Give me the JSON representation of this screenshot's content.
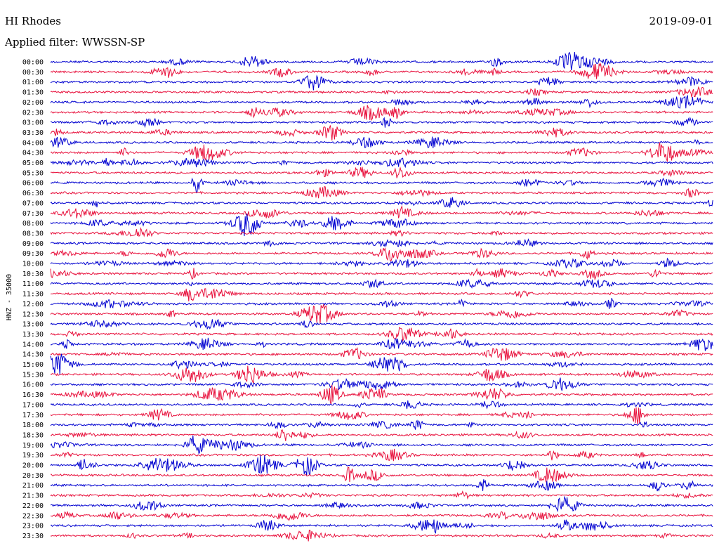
{
  "header": {
    "station": "HI Rhodes",
    "date": "2019-09-01",
    "filter_text": "Applied filter: WWSSN-SP"
  },
  "chart_data": {
    "type": "line",
    "title": "HI Rhodes",
    "date": "2019-09-01",
    "filter": "WWSSN-SP",
    "ylabel": "HNZ - 35000",
    "row_interval_minutes": 30,
    "row_labels": [
      "00:00",
      "00:30",
      "01:00",
      "01:30",
      "02:00",
      "02:30",
      "03:00",
      "03:30",
      "04:00",
      "04:30",
      "05:00",
      "05:30",
      "06:00",
      "06:30",
      "07:00",
      "07:30",
      "08:00",
      "08:30",
      "09:00",
      "09:30",
      "10:00",
      "10:30",
      "11:00",
      "11:30",
      "12:00",
      "12:30",
      "13:00",
      "13:30",
      "14:00",
      "14:30",
      "15:00",
      "15:30",
      "16:00",
      "16:30",
      "17:00",
      "17:30",
      "18:00",
      "18:30",
      "19:00",
      "19:30",
      "20:00",
      "20:30",
      "21:00",
      "21:30",
      "22:00",
      "22:30",
      "23:00",
      "23:30"
    ],
    "colors": [
      "#0000d0",
      "#e8103c"
    ],
    "grid": false
  }
}
